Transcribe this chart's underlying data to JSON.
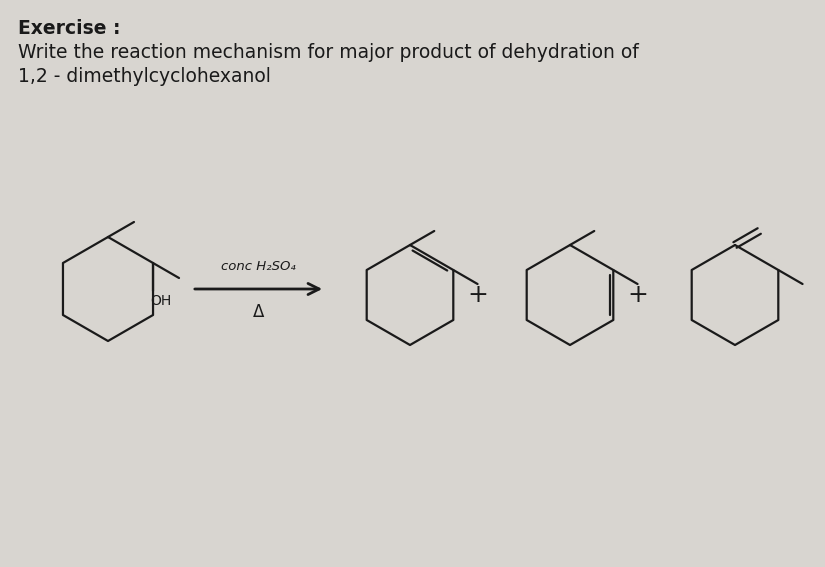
{
  "bg_color": "#d8d5d0",
  "title_line1": "Exercise :",
  "title_line2": "Write the reaction mechanism for major product of dehydration of",
  "title_line3": "1,2 - dimethylcyclohexanol",
  "reagent_top": "conc H₂SO₄",
  "reagent_bottom": "Δ",
  "plus_sign": "+",
  "line_color": "#1a1a1a",
  "text_color": "#1a1a1a",
  "title_fontsize": 13.5,
  "reagent_fontsize": 9.5,
  "delta_fontsize": 12
}
